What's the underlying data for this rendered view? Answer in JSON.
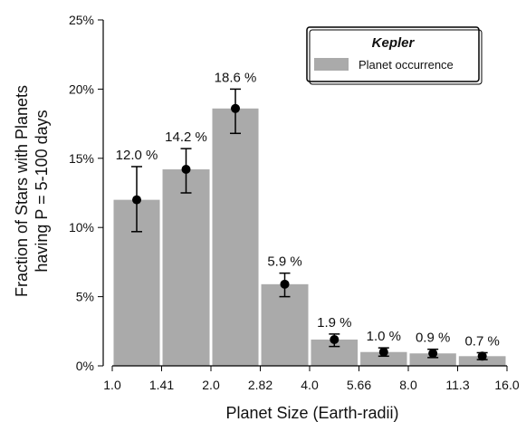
{
  "chart_data": {
    "type": "bar",
    "x_tick_labels": [
      "1.0",
      "1.41",
      "2.0",
      "2.82",
      "4.0",
      "5.66",
      "8.0",
      "11.3",
      "16.0"
    ],
    "y_tick_labels": [
      "0%",
      "5%",
      "10%",
      "15%",
      "20%",
      "25%"
    ],
    "ylim": [
      0,
      25
    ],
    "xlabel": "Planet Size (Earth-radii)",
    "ylabel": [
      "Fraction of Stars with Planets",
      "having P = 5-100 days"
    ],
    "series": [
      {
        "name": "Planet occurrence",
        "bins": [
          [
            1.0,
            1.41
          ],
          [
            1.41,
            2.0
          ],
          [
            2.0,
            2.82
          ],
          [
            2.82,
            4.0
          ],
          [
            4.0,
            5.66
          ],
          [
            5.66,
            8.0
          ],
          [
            8.0,
            11.3
          ],
          [
            11.3,
            16.0
          ]
        ],
        "values": [
          12.0,
          14.2,
          18.6,
          5.9,
          1.9,
          1.0,
          0.9,
          0.7
        ],
        "labels": [
          "12.0 %",
          "14.2 %",
          "18.6 %",
          "5.9 %",
          "1.9 %",
          "1.0 %",
          "0.9 %",
          "0.7 %"
        ],
        "error_low": [
          9.7,
          12.5,
          16.8,
          5.0,
          1.4,
          0.7,
          0.6,
          0.45
        ],
        "error_high": [
          14.4,
          15.7,
          20.0,
          6.7,
          2.3,
          1.3,
          1.2,
          0.95
        ]
      }
    ],
    "legend": {
      "title": "Kepler",
      "entries": [
        "Planet occurrence"
      ],
      "placement": "top-right"
    },
    "grid": false,
    "colors": {
      "bar": "#aaaaaa",
      "point": "#000000",
      "axis": "#000000"
    }
  }
}
